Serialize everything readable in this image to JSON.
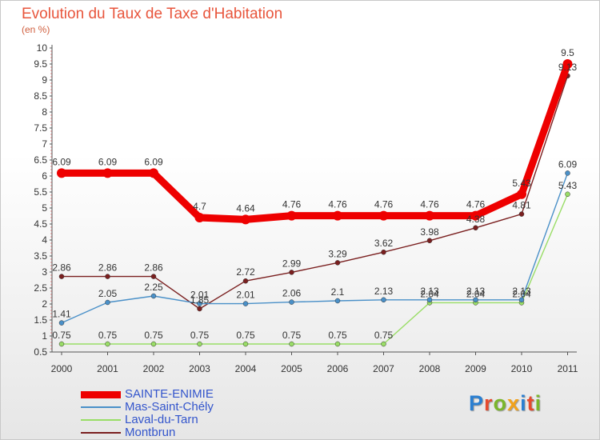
{
  "title": "Evolution du Taux de Taxe d'Habitation",
  "subtitle": "(en %)",
  "logo": {
    "text": "Proxiti",
    "letter_colors": [
      "#2a7fd1",
      "#e64a2e",
      "#7bb62b",
      "#f2a21b",
      "#2a7fd1",
      "#e64a2e",
      "#7bb62b"
    ]
  },
  "chart_data": {
    "type": "line",
    "x": [
      "2000",
      "2001",
      "2002",
      "2003",
      "2004",
      "2005",
      "2006",
      "2007",
      "2008",
      "2009",
      "2010",
      "2011"
    ],
    "ylim": [
      0.5,
      10
    ],
    "yticks": [
      "0.5",
      "1",
      "1.5",
      "2",
      "2.5",
      "3",
      "3.5",
      "4",
      "4.5",
      "5",
      "5.5",
      "6",
      "6.5",
      "7",
      "7.5",
      "8",
      "8.5",
      "9",
      "9.5",
      "10"
    ],
    "grid": false,
    "legend_position": "bottom-left",
    "series": [
      {
        "name": "SAINTE-ENIMIE",
        "color": "#ee0000",
        "values": [
          6.09,
          6.09,
          6.09,
          4.7,
          4.64,
          4.76,
          4.76,
          4.76,
          4.76,
          4.76,
          5.43,
          9.5
        ],
        "labels": [
          "6.09",
          "6.09",
          "6.09",
          "4.7",
          "4.64",
          "4.76",
          "4.76",
          "4.76",
          "4.76",
          "4.76",
          "5.43",
          "9.5"
        ]
      },
      {
        "name": "Mas-Saint-Chély",
        "color": "#4a90c8",
        "values": [
          1.41,
          2.05,
          2.25,
          2.01,
          2.01,
          2.06,
          2.1,
          2.13,
          2.13,
          2.13,
          2.13,
          6.09
        ],
        "labels": [
          "1.41",
          "2.05",
          "2.25",
          "2.01",
          "2.01",
          "2.06",
          "2.1",
          "2.13",
          "2.13",
          "2.13",
          "2.13",
          "6.09"
        ]
      },
      {
        "name": "Laval-du-Tarn",
        "color": "#99dd66",
        "values": [
          0.75,
          0.75,
          0.75,
          0.75,
          0.75,
          0.75,
          0.75,
          0.75,
          2.04,
          2.04,
          2.04,
          5.43
        ],
        "labels": [
          "0.75",
          "0.75",
          "0.75",
          "0.75",
          "0.75",
          "0.75",
          "0.75",
          "0.75",
          "2.04",
          "2.04",
          "2.04",
          "5.43"
        ]
      },
      {
        "name": "Montbrun",
        "color": "#7a1f1f",
        "values": [
          2.86,
          2.86,
          2.86,
          1.85,
          2.72,
          2.99,
          3.29,
          3.62,
          3.98,
          4.38,
          4.81,
          9.13
        ],
        "labels": [
          "2.86",
          "2.86",
          "2.86",
          "1.85",
          "2.72",
          "2.99",
          "3.29",
          "3.62",
          "3.98",
          "4.38",
          "4.81",
          "9.13"
        ]
      }
    ]
  }
}
